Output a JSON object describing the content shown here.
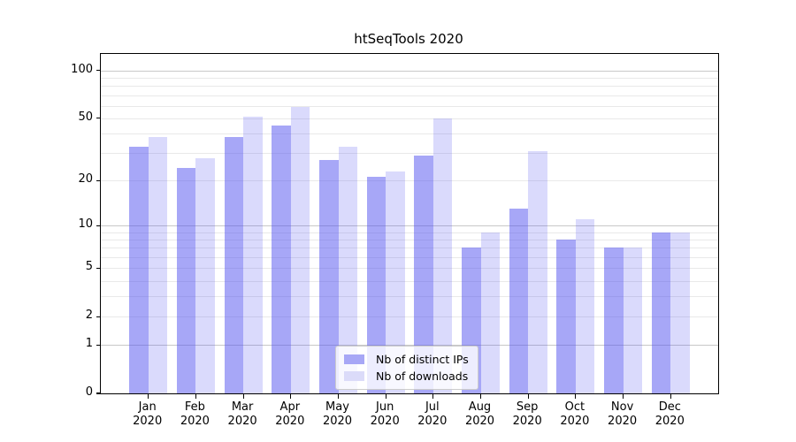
{
  "chart_data": {
    "type": "bar",
    "title": "htSeqTools 2020",
    "categories": [
      "Jan",
      "Feb",
      "Mar",
      "Apr",
      "May",
      "Jun",
      "Jul",
      "Aug",
      "Sep",
      "Oct",
      "Nov",
      "Dec"
    ],
    "x_tick_second_line": "2020",
    "series": [
      {
        "name": "Nb of distinct IPs",
        "slug": "distinct-ips",
        "bar_color": "rgba(80,80,240,0.5)",
        "swatch_color": "#a7a7f6",
        "values": [
          33,
          24,
          38,
          45,
          27,
          21,
          29,
          7,
          13,
          8,
          7,
          9
        ]
      },
      {
        "name": "Nb of downloads",
        "slug": "downloads",
        "bar_color": "rgba(80,80,240,0.21)",
        "swatch_color": "#dbdbf9",
        "values": [
          38,
          28,
          51,
          59,
          33,
          23,
          50,
          9,
          31,
          11,
          7,
          9
        ]
      }
    ],
    "xlabel": "",
    "ylabel": "",
    "yscale": "log1p",
    "ylim": [
      0,
      127
    ],
    "yticks": [
      0,
      1,
      2,
      5,
      10,
      20,
      50,
      100
    ],
    "gridlines_major": [
      1,
      10,
      100
    ],
    "gridlines_minor": [
      2,
      3,
      4,
      5,
      6,
      7,
      8,
      9,
      20,
      30,
      40,
      50,
      60,
      70,
      80,
      90
    ],
    "grid": true,
    "legend_position": "lower center",
    "bar_group_width_fraction": 0.8
  }
}
